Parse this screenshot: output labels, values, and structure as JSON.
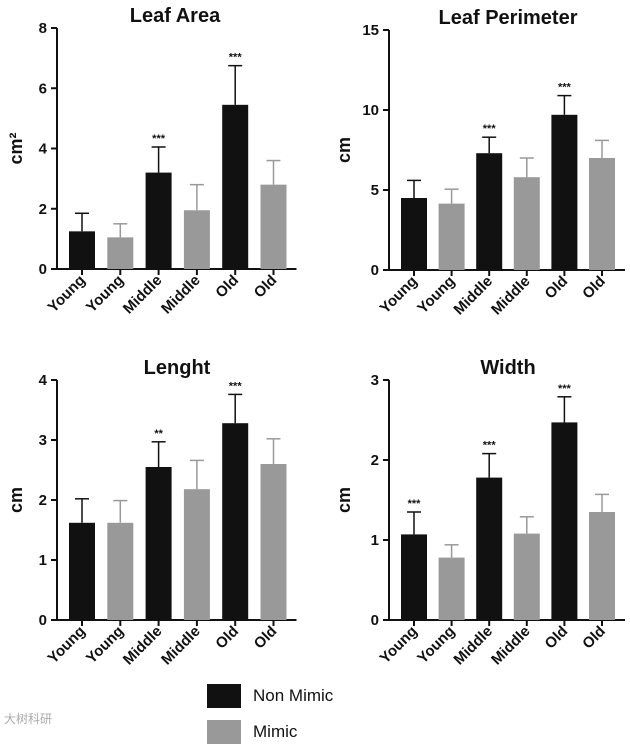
{
  "chart_data": [
    {
      "type": "bar",
      "title": "Leaf Area",
      "ylabel": "cm²",
      "ylim": [
        0,
        8
      ],
      "yticks": [
        0,
        2,
        4,
        6,
        8
      ],
      "categories": [
        "Young",
        "Young",
        "Middle",
        "Middle",
        "Old",
        "Old"
      ],
      "series_of_bar": [
        "Non Mimic",
        "Mimic",
        "Non Mimic",
        "Mimic",
        "Non Mimic",
        "Mimic"
      ],
      "values": [
        1.25,
        1.05,
        3.2,
        1.95,
        5.45,
        2.8
      ],
      "errors": [
        0.6,
        0.45,
        0.85,
        0.85,
        1.3,
        0.8
      ],
      "significance": [
        "",
        "",
        "***",
        "",
        "***",
        ""
      ]
    },
    {
      "type": "bar",
      "title": "Leaf Perimeter",
      "ylabel": "cm",
      "ylim": [
        0,
        15
      ],
      "yticks": [
        0,
        5,
        10,
        15
      ],
      "categories": [
        "Young",
        "Young",
        "Middle",
        "Middle",
        "Old",
        "Old"
      ],
      "series_of_bar": [
        "Non Mimic",
        "Mimic",
        "Non Mimic",
        "Mimic",
        "Non Mimic",
        "Mimic"
      ],
      "values": [
        4.5,
        4.15,
        7.3,
        5.8,
        9.7,
        7.0
      ],
      "errors": [
        1.1,
        0.9,
        1.0,
        1.2,
        1.2,
        1.1
      ],
      "significance": [
        "",
        "",
        "***",
        "",
        "***",
        ""
      ]
    },
    {
      "type": "bar",
      "title": "Lenght",
      "ylabel": "cm",
      "ylim": [
        0,
        4
      ],
      "yticks": [
        0,
        1,
        2,
        3,
        4
      ],
      "categories": [
        "Young",
        "Young",
        "Middle",
        "Middle",
        "Old",
        "Old"
      ],
      "series_of_bar": [
        "Non Mimic",
        "Mimic",
        "Non Mimic",
        "Mimic",
        "Non Mimic",
        "Mimic"
      ],
      "values": [
        1.62,
        1.62,
        2.55,
        2.18,
        3.28,
        2.6
      ],
      "errors": [
        0.4,
        0.37,
        0.42,
        0.48,
        0.48,
        0.42
      ],
      "significance": [
        "",
        "",
        "**",
        "",
        "***",
        ""
      ]
    },
    {
      "type": "bar",
      "title": "Width",
      "ylabel": "cm",
      "ylim": [
        0,
        3
      ],
      "yticks": [
        0,
        1,
        2,
        3
      ],
      "categories": [
        "Young",
        "Young",
        "Middle",
        "Middle",
        "Old",
        "Old"
      ],
      "series_of_bar": [
        "Non Mimic",
        "Mimic",
        "Non Mimic",
        "Mimic",
        "Non Mimic",
        "Mimic"
      ],
      "values": [
        1.07,
        0.78,
        1.78,
        1.08,
        2.47,
        1.35
      ],
      "errors": [
        0.28,
        0.16,
        0.3,
        0.21,
        0.32,
        0.22
      ],
      "significance": [
        "***",
        "",
        "***",
        "",
        "***",
        ""
      ]
    }
  ],
  "legend": {
    "entries": [
      {
        "label": "Non Mimic",
        "color": "#111111"
      },
      {
        "label": "Mimic",
        "color": "#999999"
      }
    ],
    "placement": "bottom-center"
  },
  "colors": {
    "Non Mimic": "#111111",
    "Mimic": "#999999"
  },
  "watermark": "大树科研"
}
